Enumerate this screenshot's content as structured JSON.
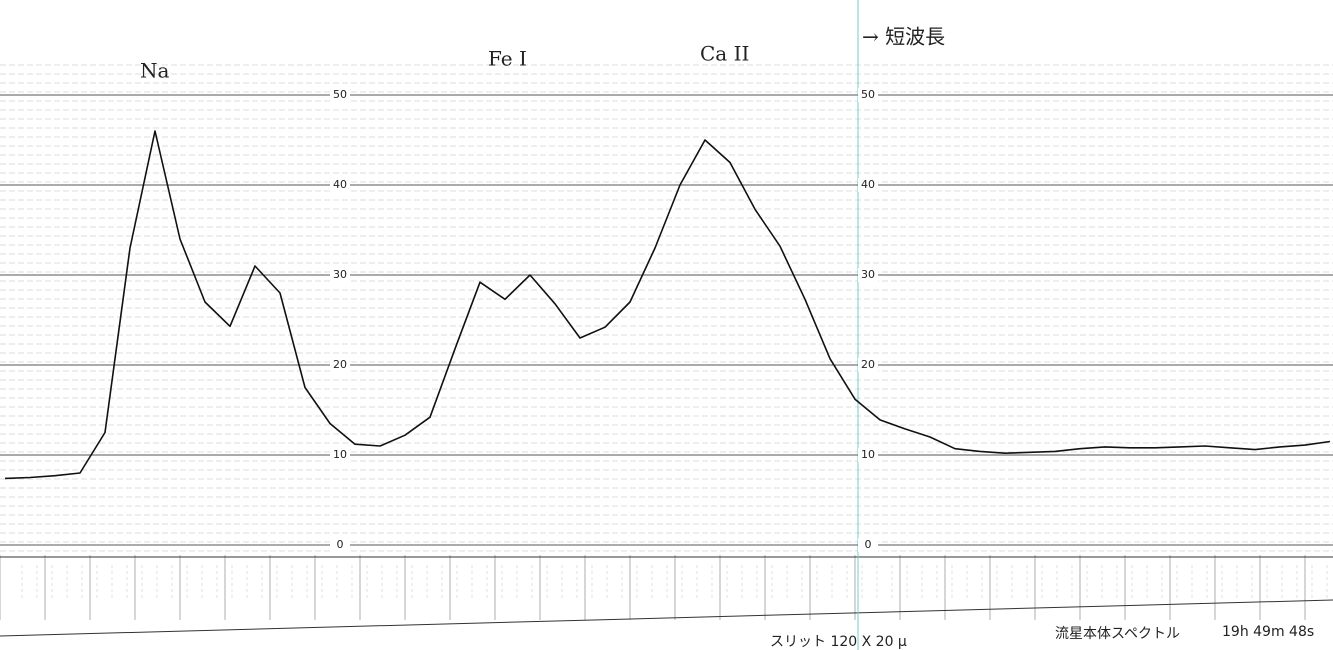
{
  "chart_data": {
    "type": "line",
    "annotations": [
      "Na",
      "Fe I",
      "Ca II",
      "→ 短波長",
      "スリット 120 X 20 μ",
      "流星本体スペクトル",
      "19h 49m 48s"
    ],
    "values": [
      7.4,
      7.5,
      7.7,
      8,
      12.5,
      33,
      46,
      34,
      27,
      24.3,
      31,
      28,
      17.5,
      13.5,
      11.2,
      11,
      12.2,
      14.2,
      21.8,
      29.2,
      27.3,
      30,
      26.8,
      23,
      24.2,
      27,
      33,
      40,
      45,
      42.5,
      37.3,
      33.2,
      27.3,
      20.7,
      16.2,
      13.9,
      12.9,
      12,
      10.7,
      10.4,
      10.2,
      10.3,
      10.4,
      10.7,
      10.9,
      10.8,
      10.8,
      10.9,
      11,
      10.8,
      10.6,
      10.9,
      11.1,
      11.5
    ],
    "color": "#111111",
    "ylim": [
      0,
      50
    ],
    "yticks": [
      0,
      10,
      20,
      30,
      40,
      50
    ],
    "grid": true
  }
}
